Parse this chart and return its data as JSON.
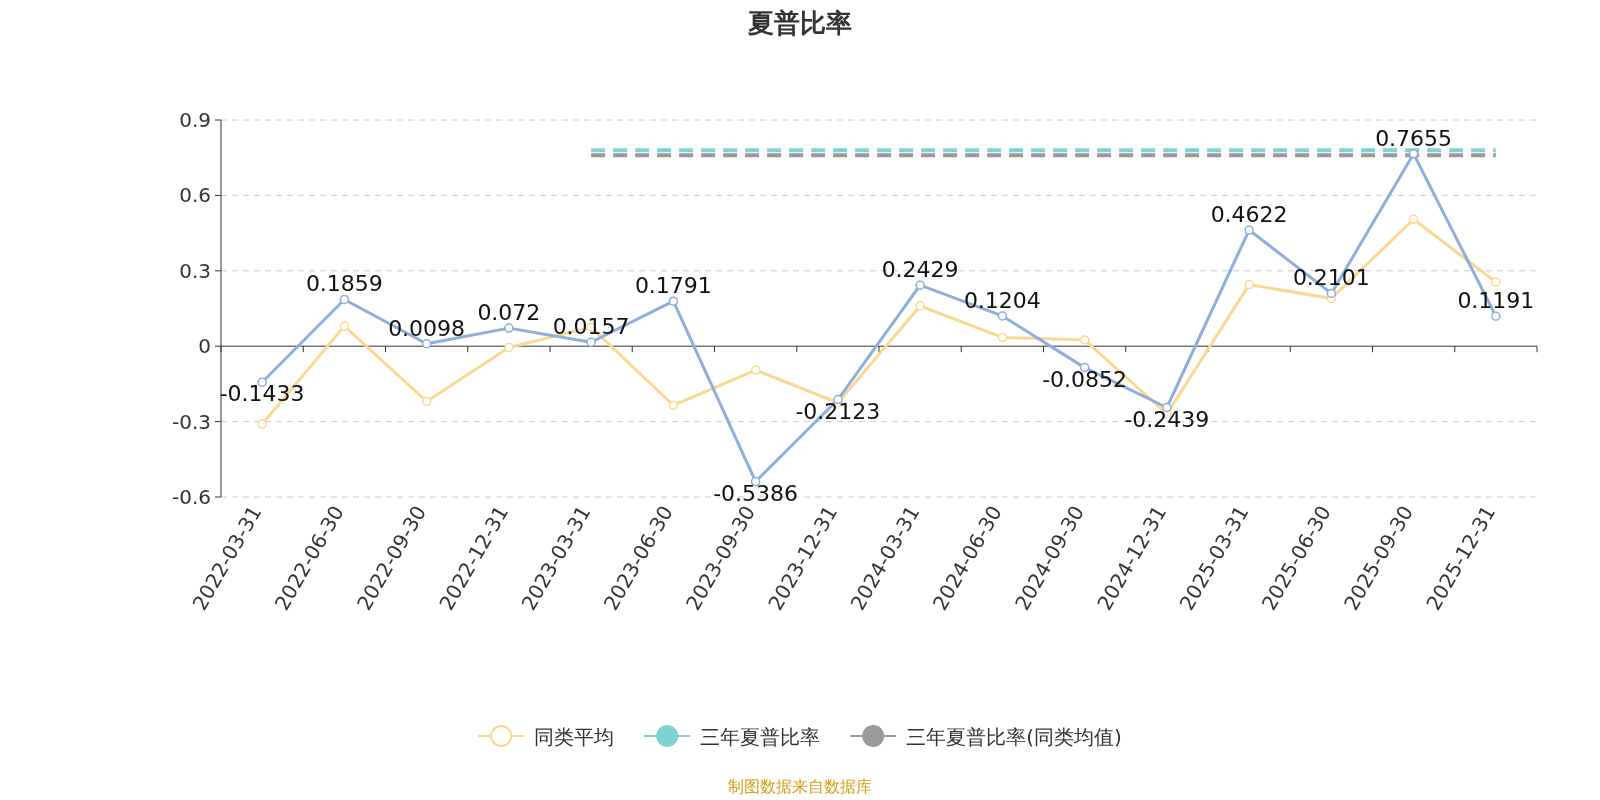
{
  "chart_data": {
    "type": "line",
    "title": "夏普比率",
    "categories": [
      "2022-03-31",
      "2022-06-30",
      "2022-09-30",
      "2022-12-31",
      "2023-03-31",
      "2023-06-30",
      "2023-09-30",
      "2023-12-31",
      "2024-03-31",
      "2024-06-30",
      "2024-09-30",
      "2024-12-31",
      "2025-03-31",
      "2025-06-30",
      "2025-09-30",
      "2025-12-31"
    ],
    "series": [
      {
        "color": "#8eaedb",
        "values": [
          -0.1433,
          0.1859,
          0.0098,
          0.072,
          0.0157,
          0.1791,
          -0.5386,
          -0.2123,
          0.2429,
          0.1204,
          -0.0852,
          -0.2439,
          0.4622,
          0.2101,
          0.7655,
          0.1191
        ],
        "value_labels": [
          "-0.1433",
          "0.1859",
          "0.0098",
          "0.072",
          "0.0157",
          "0.1791",
          "-0.5386",
          "-0.2123",
          "0.2429",
          "0.1204",
          "-0.0852",
          "-0.2439",
          "0.4622",
          "0.2101",
          "0.7655",
          "0.1191"
        ]
      },
      {
        "name": "同类平均",
        "color": "#fbd892",
        "values": [
          -0.31,
          0.08,
          -0.22,
          -0.005,
          0.075,
          -0.235,
          -0.095,
          -0.225,
          0.16,
          0.035,
          0.025,
          -0.27,
          0.245,
          0.19,
          0.505,
          0.255
        ]
      },
      {
        "name": "三年夏普比率",
        "color": "#7fd3d6",
        "line_style": "dashed",
        "marker": "none",
        "values": [
          null,
          null,
          null,
          null,
          0.78,
          0.78,
          0.78,
          0.78,
          0.78,
          0.78,
          0.78,
          0.78,
          0.78,
          0.78,
          0.78,
          0.78
        ]
      },
      {
        "name": "三年夏普比率(同类均值)",
        "color": "#9a9a9a",
        "line_style": "dashed",
        "marker": "none",
        "values": [
          null,
          null,
          null,
          null,
          0.76,
          0.76,
          0.76,
          0.76,
          0.76,
          0.76,
          0.76,
          0.76,
          0.76,
          0.76,
          0.76,
          0.76
        ]
      }
    ],
    "ylim": [
      -0.6,
      0.9
    ],
    "yticks": [
      -0.6,
      -0.3,
      0,
      0.3,
      0.6,
      0.9
    ],
    "grid": "y",
    "legend": "bottom",
    "marker": "circle",
    "annotations": [
      "制图数据来自数据库"
    ]
  }
}
